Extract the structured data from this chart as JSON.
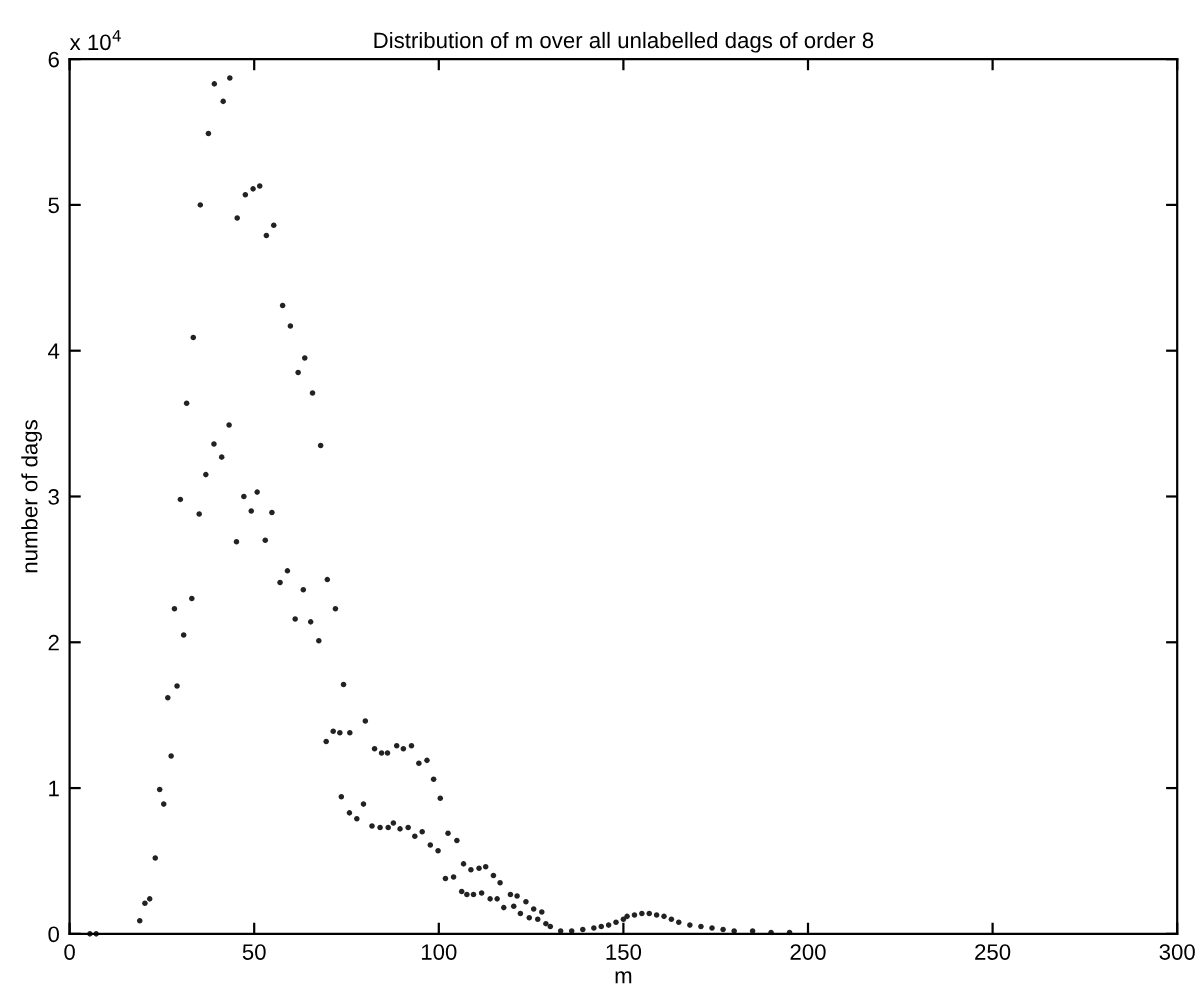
{
  "chart_data": {
    "type": "scatter",
    "title": "Distribution of m over all unlabelled dags of order 8",
    "xlabel": "m",
    "ylabel": "number of dags",
    "annotations": [
      "x 10$^{4}$"
    ],
    "x": [
      5.5,
      7.2,
      19,
      20.4,
      21.7,
      23.2,
      24.4,
      25.5,
      27.5,
      26.6,
      29.1,
      28.4,
      30.9,
      30,
      33.1,
      35.1,
      36.9,
      31.7,
      33.5,
      35.4,
      37.6,
      39.2,
      41.6,
      43.4,
      39.1,
      41.2,
      43.2,
      47.2,
      50.8,
      45.4,
      47.6,
      49.7,
      51.5,
      53.3,
      55.3,
      57.7,
      59.8,
      61.9,
      63.7,
      65.8,
      68,
      45.2,
      49.2,
      53,
      54.8,
      57,
      59,
      61.1,
      63.3,
      65.3,
      67.5,
      69.8,
      72,
      74.2,
      69.5,
      71.4,
      73.6,
      75.8,
      77.8,
      79.6,
      73.2,
      75.9,
      80.1,
      81.9,
      82.6,
      84.1,
      84.5,
      86.1,
      86.3,
      87.7,
      88.6,
      89.5,
      90.4,
      91.7,
      92.6,
      93.5,
      94.6,
      95.5,
      96.8,
      97.7,
      98.6,
      99.8,
      100.4,
      101.8,
      102.5,
      104,
      104.9,
      106.2,
      106.7,
      107.6,
      108.7,
      109.4,
      110.9,
      111.6,
      112.7,
      113.9,
      114.8,
      115.8,
      116.6,
      117.6,
      119.4,
      120.3,
      121.2,
      122.1,
      123.6,
      124.5,
      125.7,
      126.8,
      127.9,
      129,
      130.2,
      133,
      136,
      139,
      142,
      144,
      146,
      148,
      150,
      151,
      153,
      155,
      157,
      159,
      161,
      163,
      165,
      168,
      171,
      174,
      177,
      180,
      185,
      190,
      195
    ],
    "values": [
      0,
      0,
      0.09,
      0.21,
      0.24,
      0.52,
      0.99,
      0.89,
      1.22,
      1.62,
      1.7,
      2.23,
      2.05,
      2.98,
      2.3,
      2.88,
      3.15,
      3.64,
      4.09,
      5.0,
      5.49,
      5.83,
      5.71,
      5.87,
      3.36,
      3.27,
      3.49,
      3.0,
      3.03,
      4.91,
      5.07,
      5.11,
      5.13,
      4.79,
      4.86,
      4.31,
      4.17,
      3.85,
      3.95,
      3.71,
      3.35,
      2.69,
      2.9,
      2.7,
      2.89,
      2.41,
      2.49,
      2.16,
      2.36,
      2.14,
      2.01,
      2.43,
      2.23,
      1.71,
      1.32,
      1.39,
      0.94,
      0.83,
      0.79,
      0.89,
      1.38,
      1.38,
      1.46,
      0.74,
      1.27,
      0.73,
      1.24,
      1.24,
      0.73,
      0.76,
      1.29,
      0.72,
      1.27,
      0.73,
      1.29,
      0.67,
      1.17,
      0.7,
      1.19,
      0.61,
      1.06,
      0.57,
      0.93,
      0.38,
      0.69,
      0.39,
      0.64,
      0.29,
      0.48,
      0.27,
      0.44,
      0.27,
      0.45,
      0.28,
      0.46,
      0.24,
      0.4,
      0.24,
      0.35,
      0.18,
      0.27,
      0.19,
      0.26,
      0.14,
      0.22,
      0.11,
      0.17,
      0.1,
      0.15,
      0.07,
      0.05,
      0.02,
      0.02,
      0.03,
      0.04,
      0.05,
      0.06,
      0.08,
      0.1,
      0.12,
      0.13,
      0.14,
      0.14,
      0.13,
      0.12,
      0.1,
      0.08,
      0.06,
      0.05,
      0.04,
      0.03,
      0.02,
      0.02,
      0.01,
      0.01
    ],
    "color": "#222222",
    "marker": "circle",
    "xlim": [
      0,
      300
    ],
    "xticks": [
      0,
      50,
      100,
      150,
      200,
      250,
      300
    ],
    "ylim": [
      0,
      6
    ],
    "yticks": [
      0,
      1,
      2,
      3,
      4,
      5,
      6
    ],
    "grid": false
  }
}
